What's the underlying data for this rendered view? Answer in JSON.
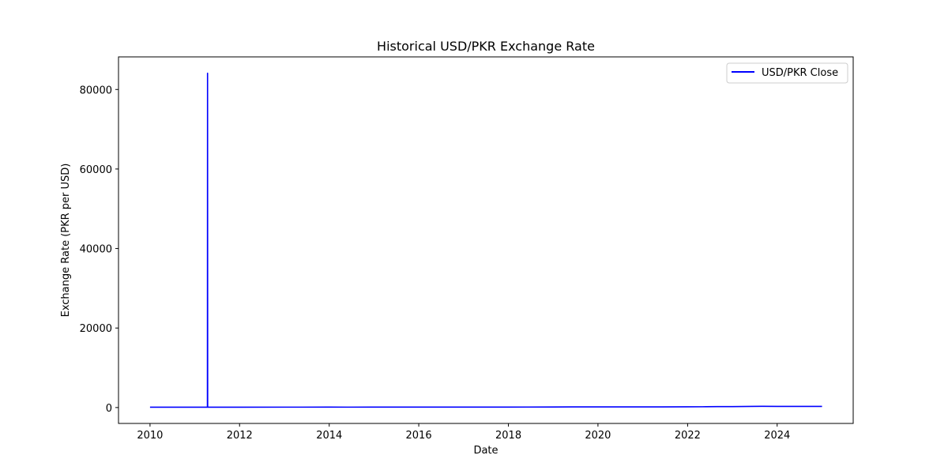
{
  "chart_data": {
    "type": "line",
    "title": "Historical USD/PKR Exchange Rate",
    "xlabel": "Date",
    "ylabel": "Exchange Rate (PKR per USD)",
    "legend": {
      "placement": "top-right",
      "entries": [
        "USD/PKR Close"
      ]
    },
    "grid": false,
    "xlim": [
      "2009-04-19",
      "2025-09-12"
    ],
    "ylim": [
      -4000,
      88200
    ],
    "x_ticks": [
      "2010",
      "2012",
      "2014",
      "2016",
      "2018",
      "2020",
      "2022",
      "2024"
    ],
    "y_ticks": [
      "0",
      "20000",
      "40000",
      "60000",
      "80000"
    ],
    "series": [
      {
        "name": "USD/PKR Close",
        "color": "#0000ff",
        "points": [
          [
            "2010-01-01",
            84
          ],
          [
            "2010-06-01",
            85
          ],
          [
            "2011-01-01",
            86
          ],
          [
            "2011-04-01",
            86
          ],
          [
            "2011-04-14",
            86
          ],
          [
            "2011-04-15",
            84100
          ],
          [
            "2011-04-16",
            86
          ],
          [
            "2011-05-01",
            86
          ],
          [
            "2012-01-01",
            90
          ],
          [
            "2013-01-01",
            97
          ],
          [
            "2014-01-01",
            105
          ],
          [
            "2014-06-01",
            99
          ],
          [
            "2015-01-01",
            101
          ],
          [
            "2015-06-01",
            102
          ],
          [
            "2016-01-01",
            105
          ],
          [
            "2017-01-01",
            105
          ],
          [
            "2018-01-01",
            110
          ],
          [
            "2018-06-01",
            121
          ],
          [
            "2019-01-01",
            139
          ],
          [
            "2019-06-01",
            158
          ],
          [
            "2020-01-01",
            155
          ],
          [
            "2020-06-01",
            167
          ],
          [
            "2021-01-01",
            160
          ],
          [
            "2021-06-01",
            157
          ],
          [
            "2022-01-01",
            176
          ],
          [
            "2022-06-01",
            205
          ],
          [
            "2022-09-01",
            235
          ],
          [
            "2023-01-01",
            228
          ],
          [
            "2023-06-01",
            287
          ],
          [
            "2023-09-01",
            305
          ],
          [
            "2024-01-01",
            281
          ],
          [
            "2024-06-01",
            278
          ],
          [
            "2025-01-01",
            279
          ]
        ]
      }
    ]
  }
}
